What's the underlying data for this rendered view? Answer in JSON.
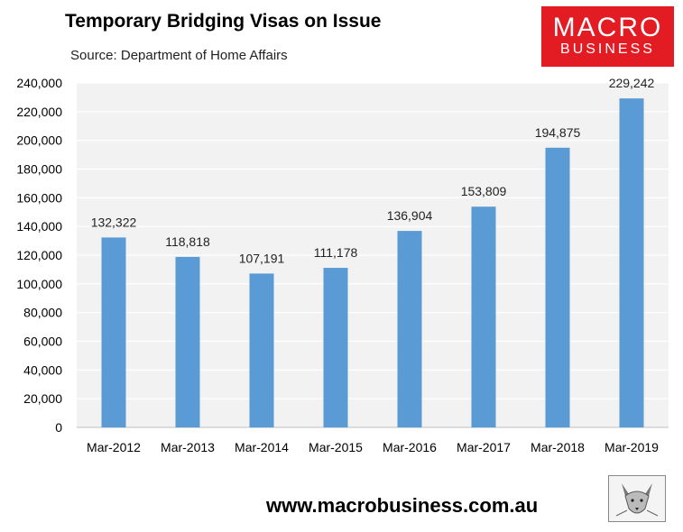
{
  "header": {
    "title": "Temporary Bridging Visas on Issue",
    "subtitle": "Source: Department of Home Affairs"
  },
  "logo": {
    "line1": "MACRO",
    "line2": "BUSINESS",
    "color": "#e31b23"
  },
  "footer": {
    "url": "www.macrobusiness.com.au"
  },
  "colors": {
    "bar": "#5b9bd5",
    "plot_bg": "#f2f2f2",
    "gridline": "#ffffff"
  },
  "chart_data": {
    "type": "bar",
    "title": "Temporary Bridging Visas on Issue",
    "subtitle": "Source: Department of Home Affairs",
    "categories": [
      "Mar-2012",
      "Mar-2013",
      "Mar-2014",
      "Mar-2015",
      "Mar-2016",
      "Mar-2017",
      "Mar-2018",
      "Mar-2019"
    ],
    "values": [
      132322,
      118818,
      107191,
      111178,
      136904,
      153809,
      194875,
      229242
    ],
    "data_labels": [
      "132,322",
      "118,818",
      "107,191",
      "111,178",
      "136,904",
      "153,809",
      "194,875",
      "229,242"
    ],
    "ylim": [
      0,
      240000
    ],
    "yticks": [
      0,
      20000,
      40000,
      60000,
      80000,
      100000,
      120000,
      140000,
      160000,
      180000,
      200000,
      220000,
      240000
    ],
    "ytick_labels": [
      "0",
      "20,000",
      "40,000",
      "60,000",
      "80,000",
      "100,000",
      "120,000",
      "140,000",
      "160,000",
      "180,000",
      "200,000",
      "220,000",
      "240,000"
    ],
    "xlabel": "",
    "ylabel": "",
    "grid": true,
    "legend": "none"
  }
}
